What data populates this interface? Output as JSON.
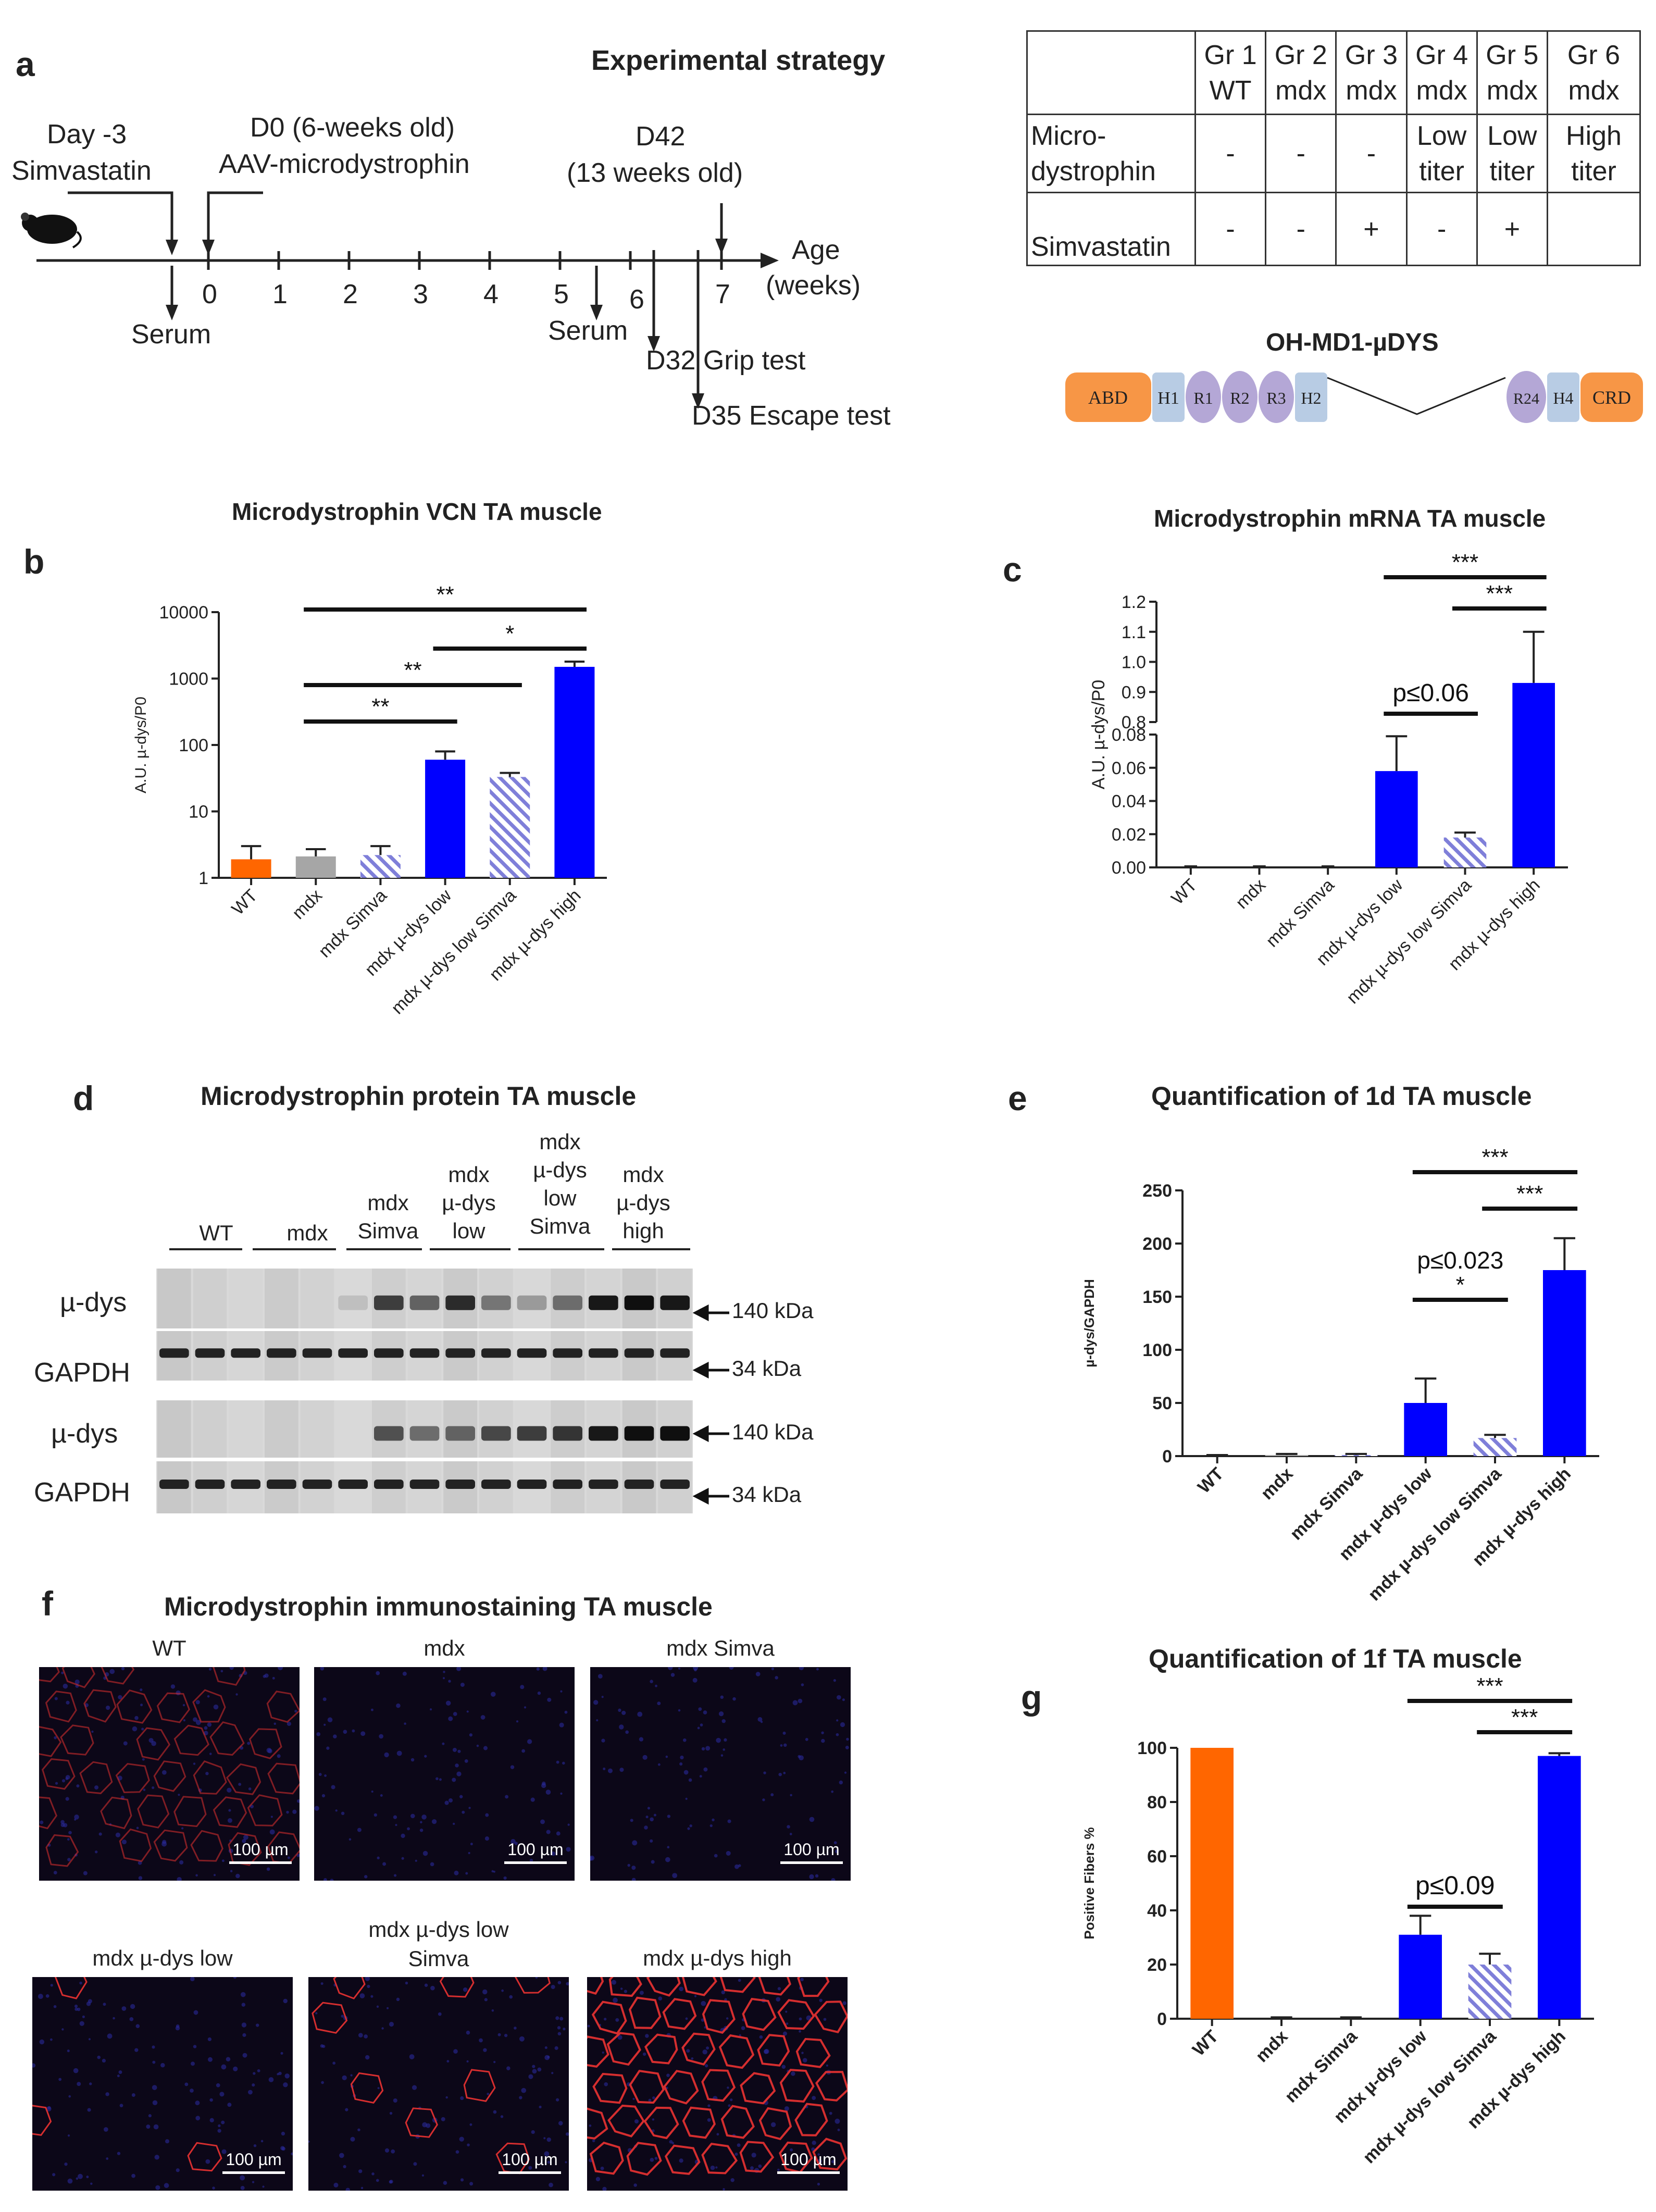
{
  "panel_a": {
    "letter": "a",
    "title": "Experimental strategy",
    "timeline": {
      "day_minus3_line1": "Day -3",
      "day_minus3_line2": "Simvastatin",
      "d0_line1": "D0 (6-weeks old)",
      "d0_line2": "AAV-microdystrophin",
      "d42_line1": "D42",
      "d42_line2": "(13 weeks old)",
      "age_label_line1": "Age",
      "age_label_line2": "(weeks)",
      "ticks": [
        "0",
        "1",
        "2",
        "3",
        "4",
        "5",
        "6",
        "7"
      ],
      "serum_1": "Serum",
      "serum_2": "Serum",
      "grip": "D32 Grip test",
      "escape": "D35 Escape test"
    },
    "table": {
      "headers": [
        [
          "Gr 1",
          "WT"
        ],
        [
          "Gr 2",
          "mdx"
        ],
        [
          "Gr 3",
          "mdx"
        ],
        [
          "Gr 4",
          "mdx"
        ],
        [
          "Gr 5",
          "mdx"
        ],
        [
          "Gr 6",
          "mdx"
        ]
      ],
      "row1_label": [
        "Micro-",
        "dystrophin"
      ],
      "row1": [
        [
          "-"
        ],
        [
          "-"
        ],
        [
          "-"
        ],
        [
          "Low",
          "titer"
        ],
        [
          "Low",
          "titer"
        ],
        [
          "High",
          "titer"
        ]
      ],
      "row2_label": "Simvastatin",
      "row2": [
        "-",
        "-",
        "+",
        "-",
        "+",
        ""
      ]
    },
    "construct": {
      "title": "OH-MD1-µDYS",
      "domains": [
        "ABD",
        "H1",
        "R1",
        "R2",
        "R3",
        "H2",
        "R24",
        "H4",
        "CRD"
      ],
      "colors": {
        "abd": "#f79646",
        "hinge": "#b8cce4",
        "rod": "#b4a7d6"
      }
    }
  },
  "categories": [
    "WT",
    "mdx",
    "mdx Simva",
    "mdx µ-dys low",
    "mdx µ-dys low Simva",
    "mdx µ-dys high"
  ],
  "colors": {
    "wt": "#ff6600",
    "mdx": "#a6a6a6",
    "blue": "#0000ff",
    "hatch": "#7f7fd9"
  },
  "chart_data": [
    {
      "panel": "b",
      "type": "bar",
      "title": "Microdystrophin VCN TA muscle",
      "ylabel": "A.U. µ-dys/P0",
      "yscale": "log",
      "ylim": [
        1,
        10000
      ],
      "yticks": [
        "1",
        "10",
        "100",
        "1000",
        "10000"
      ],
      "categories": [
        "WT",
        "mdx",
        "mdx Simva",
        "mdx µ-dys low",
        "mdx µ-dys low Simva",
        "mdx µ-dys high"
      ],
      "values": [
        1.9,
        2.1,
        2.2,
        60,
        33,
        1500
      ],
      "errors": [
        3.0,
        2.7,
        3.0,
        80,
        38,
        1800
      ],
      "significance": [
        {
          "from": 1,
          "to": 3,
          "label": "**"
        },
        {
          "from": 1,
          "to": 4,
          "label": "**"
        },
        {
          "from": 3,
          "to": 5,
          "label": "*"
        },
        {
          "from": 1,
          "to": 5,
          "label": "**"
        }
      ]
    },
    {
      "panel": "c",
      "type": "bar",
      "title": "Microdystrophin mRNA TA muscle",
      "ylabel": "A.U. µ-dys/P0",
      "yscale": "broken",
      "ylim_lower": [
        0,
        0.08
      ],
      "ylim_upper": [
        0.8,
        1.2
      ],
      "yticks_lower": [
        "0.00",
        "0.02",
        "0.04",
        "0.06",
        "0.08"
      ],
      "yticks_upper": [
        "0.8",
        "0.9",
        "1.0",
        "1.1",
        "1.2"
      ],
      "categories": [
        "WT",
        "mdx",
        "mdx Simva",
        "mdx µ-dys low",
        "mdx µ-dys low Simva",
        "mdx µ-dys high"
      ],
      "values": [
        0,
        0,
        0,
        0.058,
        0.018,
        0.93
      ],
      "errors": [
        0,
        0,
        0,
        0.079,
        0.021,
        1.1
      ],
      "significance": [
        {
          "from": 3,
          "to": 4,
          "label": "p≤0.06"
        },
        {
          "from": 4,
          "to": 5,
          "label": "***"
        },
        {
          "from": 3,
          "to": 5,
          "label": "***"
        }
      ]
    },
    {
      "panel": "e",
      "type": "bar",
      "title": "Quantification of 1d TA muscle",
      "ylabel": "µ-dys/GAPDH",
      "ylim": [
        0,
        250
      ],
      "yticks": [
        "0",
        "50",
        "100",
        "150",
        "200",
        "250"
      ],
      "categories": [
        "WT",
        "mdx",
        "mdx Simva",
        "mdx µ-dys low",
        "mdx µ-dys low Simva",
        "mdx µ-dys high"
      ],
      "values": [
        0,
        1,
        1,
        50,
        17,
        175
      ],
      "errors": [
        1,
        2,
        2,
        73,
        20,
        205
      ],
      "significance": [
        {
          "from": 3,
          "to": 4,
          "label": "*"
        },
        {
          "from": 3,
          "to": 4,
          "label": "p≤0.023",
          "above": true
        },
        {
          "from": 4,
          "to": 5,
          "label": "***"
        },
        {
          "from": 3,
          "to": 5,
          "label": "***"
        }
      ]
    },
    {
      "panel": "g",
      "type": "bar",
      "title": "Quantification of 1f TA muscle",
      "ylabel": "Positive Fibers %",
      "ylim": [
        0,
        100
      ],
      "yticks": [
        "0",
        "20",
        "40",
        "60",
        "80",
        "100"
      ],
      "categories": [
        "WT",
        "mdx",
        "mdx Simva",
        "mdx µ-dys low",
        "mdx µ-dys low Simva",
        "mdx µ-dys high"
      ],
      "values": [
        100,
        0,
        0,
        31,
        20,
        97
      ],
      "errors": [
        100,
        0.5,
        0.5,
        38,
        24,
        98
      ],
      "significance": [
        {
          "from": 3,
          "to": 4,
          "label": "p≤0.09"
        },
        {
          "from": 4,
          "to": 5,
          "label": "***"
        },
        {
          "from": 3,
          "to": 5,
          "label": "***"
        }
      ]
    }
  ],
  "panel_d": {
    "letter": "d",
    "title": "Microdystrophin protein TA muscle",
    "lanes": [
      [
        "WT"
      ],
      [
        "mdx"
      ],
      [
        "mdx",
        "Simva"
      ],
      [
        "mdx",
        "µ-dys",
        "low"
      ],
      [
        "mdx",
        "µ-dys",
        "low",
        "Simva"
      ],
      [
        "mdx",
        "µ-dys",
        "high"
      ]
    ],
    "rows": [
      "µ-dys",
      "GAPDH",
      "µ-dys",
      "GAPDH"
    ],
    "kda": [
      "140 kDa",
      "34 kDa",
      "140 kDa",
      "34 kDa"
    ]
  },
  "panel_f": {
    "letter": "f",
    "title": "Microdystrophin immunostaining TA muscle",
    "images": [
      {
        "caption": "WT"
      },
      {
        "caption": "mdx"
      },
      {
        "caption": "mdx Simva"
      },
      {
        "caption": "mdx µ-dys low"
      },
      {
        "caption_line1": "mdx µ-dys low",
        "caption_line2": "Simva"
      },
      {
        "caption": "mdx µ-dys high"
      }
    ],
    "scale_bar": "100 µm"
  },
  "letters": {
    "b": "b",
    "c": "c",
    "e": "e",
    "g": "g"
  }
}
